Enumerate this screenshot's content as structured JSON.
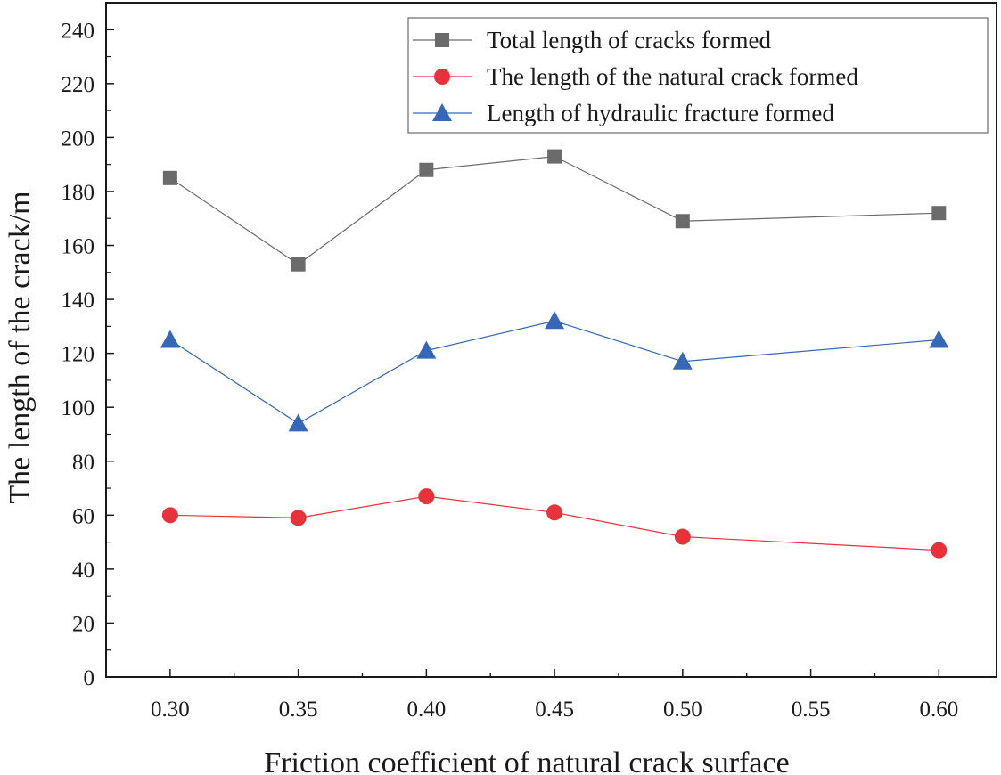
{
  "chart_data": {
    "type": "line",
    "title": "",
    "xlabel": "Friction coefficient of natural crack surface",
    "ylabel": "The length of the crack/m",
    "xlim": [
      0.275,
      0.6225
    ],
    "ylim": [
      0,
      250
    ],
    "x_ticks": [
      "0.30",
      "0.35",
      "0.40",
      "0.45",
      "0.50",
      "0.55",
      "0.60"
    ],
    "y_ticks": [
      "0",
      "20",
      "40",
      "60",
      "80",
      "100",
      "120",
      "140",
      "160",
      "180",
      "200",
      "220",
      "240"
    ],
    "x": [
      0.3,
      0.35,
      0.4,
      0.45,
      0.5,
      0.6
    ],
    "series": [
      {
        "name": "Total length of cracks formed",
        "color": "#6b6b6b",
        "marker": "square",
        "values": [
          185,
          153,
          188,
          193,
          169,
          172
        ]
      },
      {
        "name": "The length of the natural crack formed",
        "color": "#e8323a",
        "marker": "circle",
        "values": [
          60,
          59,
          67,
          61,
          52,
          47
        ]
      },
      {
        "name": "Length of hydraulic fracture formed",
        "color": "#3568b8",
        "marker": "triangle",
        "values": [
          125,
          94,
          121,
          132,
          117,
          125
        ]
      }
    ],
    "legend_position": "top-right",
    "grid": false
  }
}
